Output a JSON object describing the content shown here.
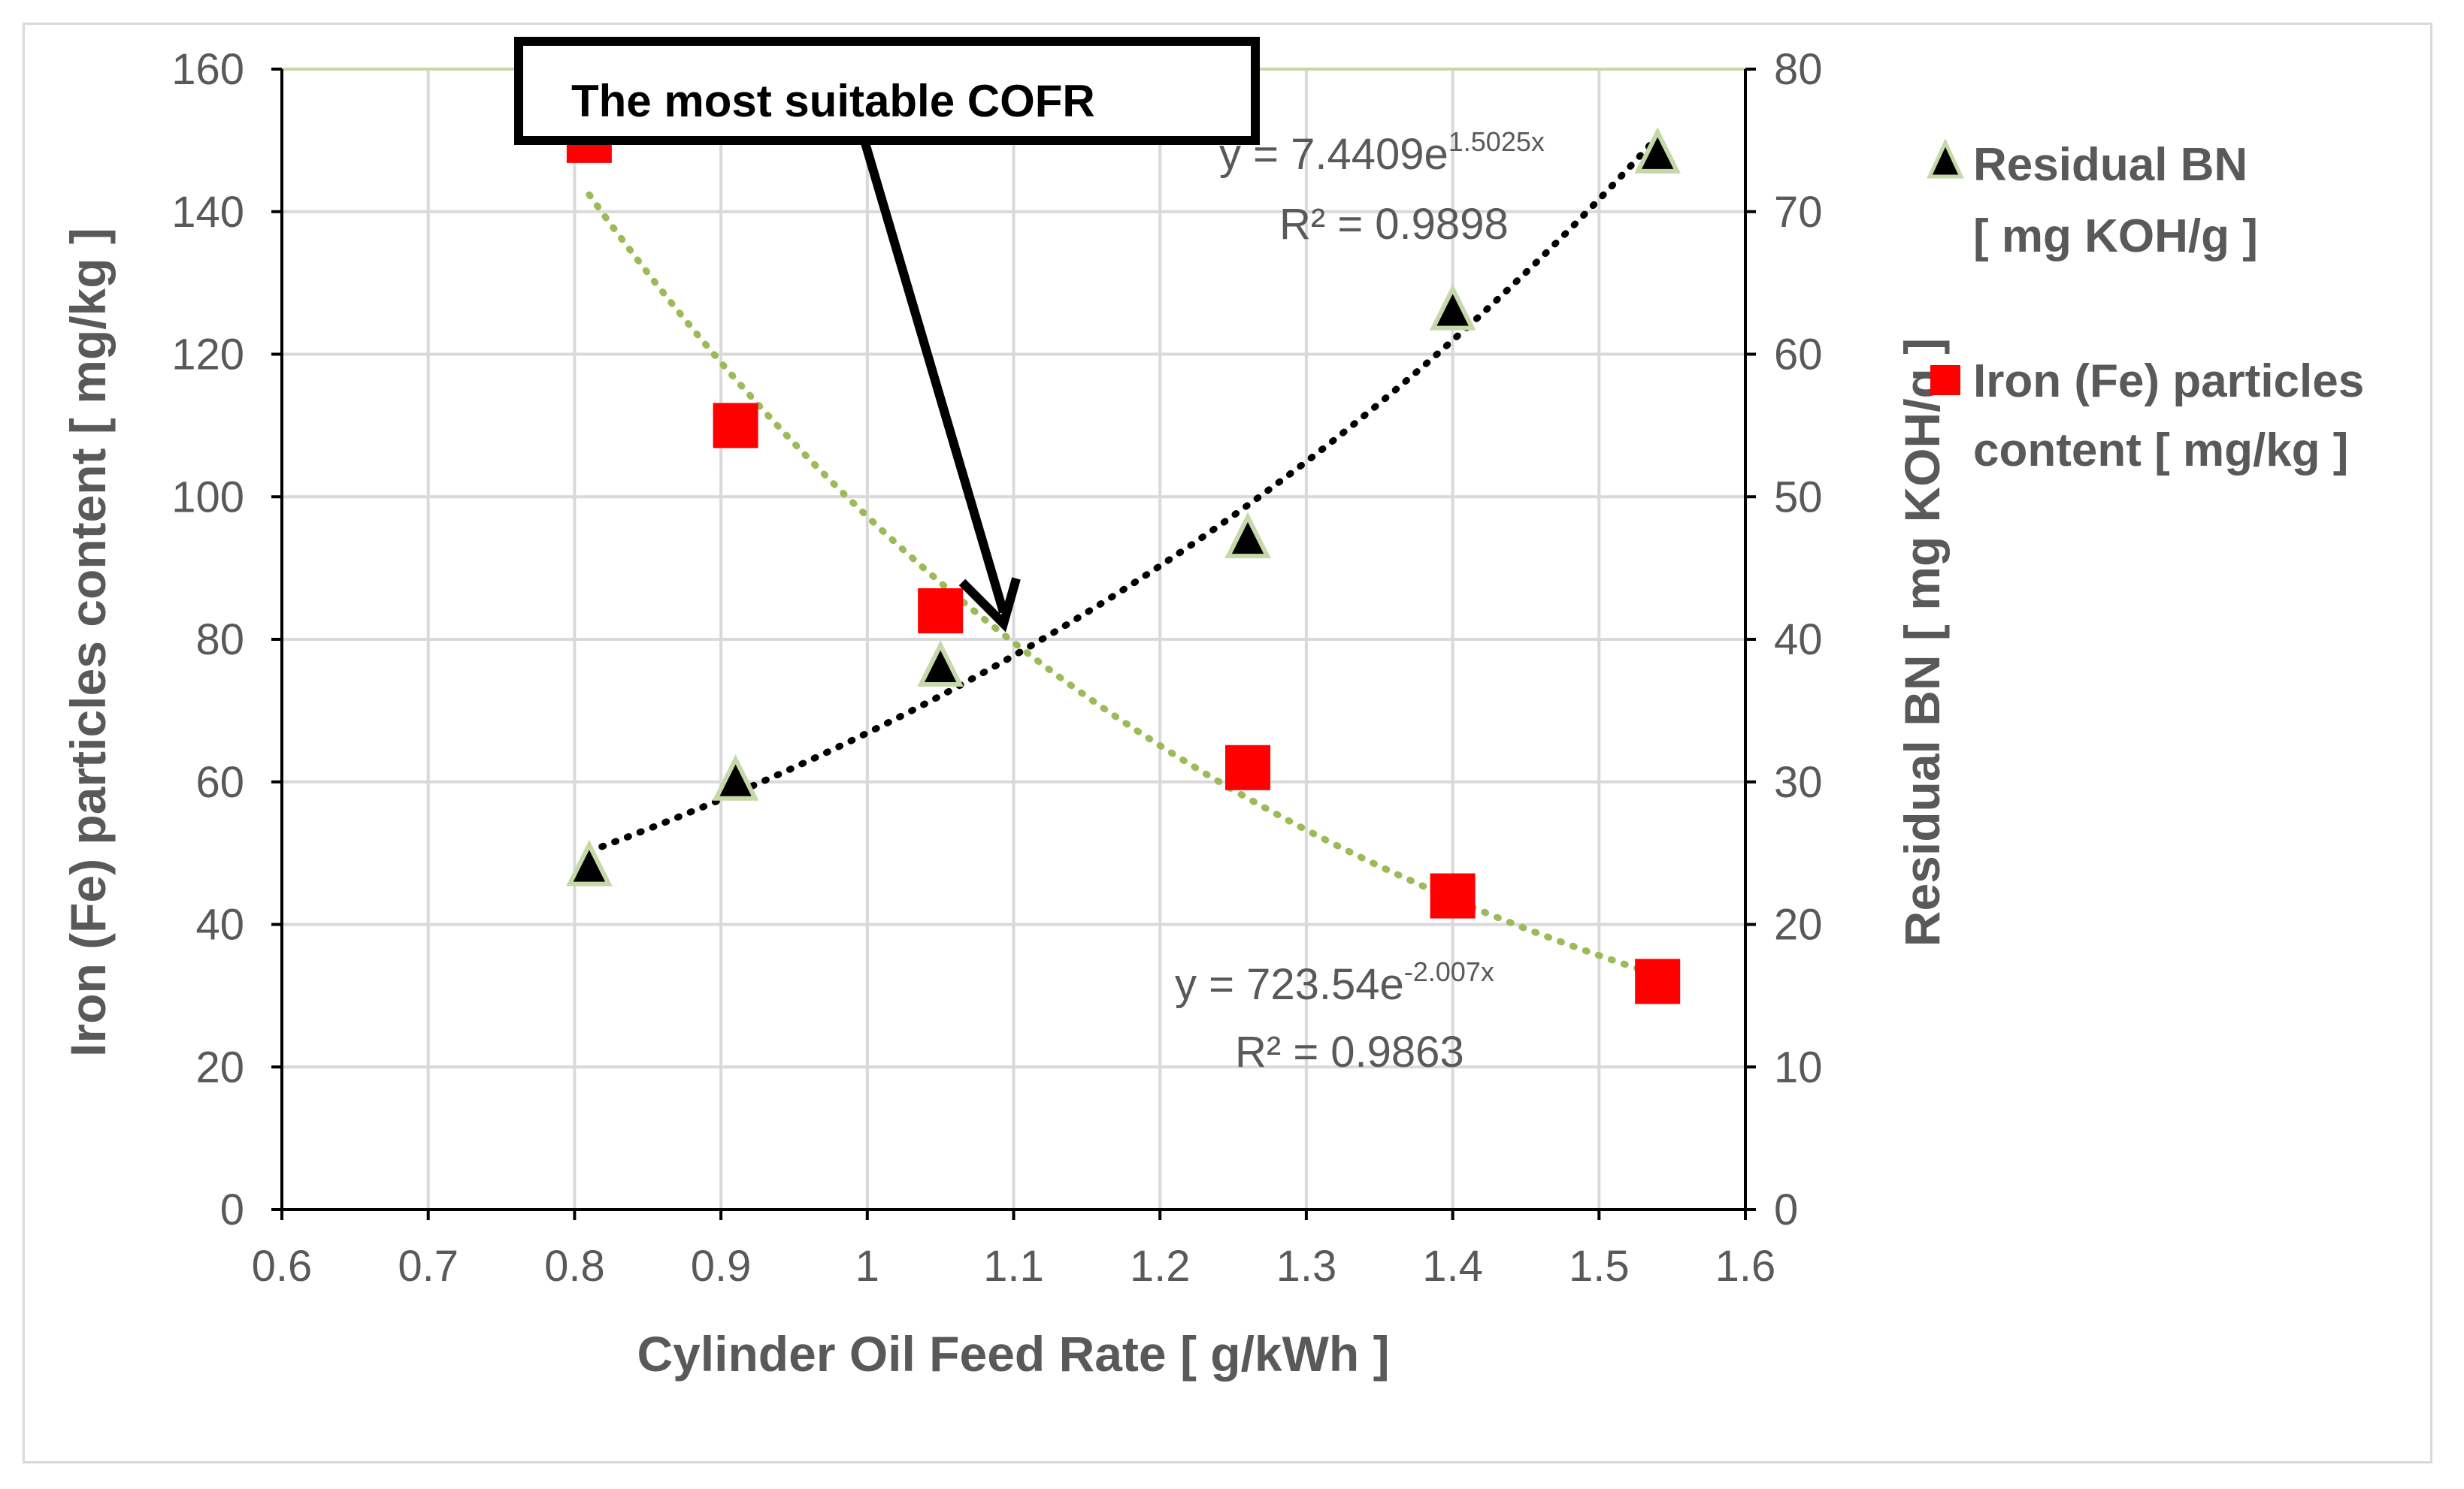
{
  "chart_data": {
    "type": "scatter",
    "x_axis": {
      "label": "Cylinder Oil Feed Rate  [ g/kWh ]",
      "min": 0.6,
      "max": 1.6,
      "step": 0.1,
      "tick_labels": [
        "0.6",
        "0.7",
        "0.8",
        "0.9",
        "1",
        "1.1",
        "1.2",
        "1.3",
        "1.4",
        "1.5",
        "1.6"
      ]
    },
    "y_axis_left": {
      "label": "Iron (Fe) particles content [ mg/kg ]",
      "min": 0,
      "max": 160,
      "step": 20,
      "tick_labels": [
        "0",
        "20",
        "40",
        "60",
        "80",
        "100",
        "120",
        "140",
        "160"
      ]
    },
    "y_axis_right": {
      "label": "Residual BN [ mg KOH/g ]",
      "min": 0,
      "max": 80,
      "step": 10,
      "tick_labels": [
        "0",
        "10",
        "20",
        "30",
        "40",
        "50",
        "60",
        "70",
        "80"
      ]
    },
    "grid": true,
    "series": [
      {
        "name": "Residual BN [ mg KOH/g ]",
        "axis": "right",
        "marker": "triangle",
        "color": "#000000",
        "marker_edge": "#c5d8a8",
        "x": [
          0.81,
          0.91,
          1.05,
          1.26,
          1.4,
          1.54
        ],
        "y": [
          24,
          30,
          38,
          47,
          63,
          74
        ],
        "trendline": {
          "type": "exponential",
          "a": 7.4409,
          "b": 1.5025,
          "color": "#000000"
        },
        "equation": {
          "main": "y = 7.4409e",
          "exp": "1.5025x"
        },
        "r2": "R² = 0.9898"
      },
      {
        "name": "Iron (Fe) particles content [ mg/kg ]",
        "axis": "left",
        "marker": "square",
        "color": "#ff0000",
        "x": [
          0.81,
          0.91,
          1.05,
          1.26,
          1.4,
          1.54
        ],
        "y": [
          150,
          110,
          84,
          62,
          44,
          32
        ],
        "trendline": {
          "type": "exponential",
          "a": 723.54,
          "b": -2.007,
          "color": "#9bbb59"
        },
        "equation": {
          "main": "y = 723.54e",
          "exp": "-2.007x"
        },
        "r2": "R² = 0.9863"
      }
    ],
    "annotation": {
      "text": "The most suitable COFR",
      "points_to": {
        "x": 1.1,
        "y_left": 80
      }
    },
    "legend": {
      "position": "right",
      "items": [
        {
          "line1": "Residual BN",
          "line2": "[ mg KOH/g ]",
          "marker": "triangle"
        },
        {
          "line1": "Iron (Fe) particles",
          "line2": "content  [ mg/kg ]",
          "marker": "square"
        }
      ]
    }
  }
}
